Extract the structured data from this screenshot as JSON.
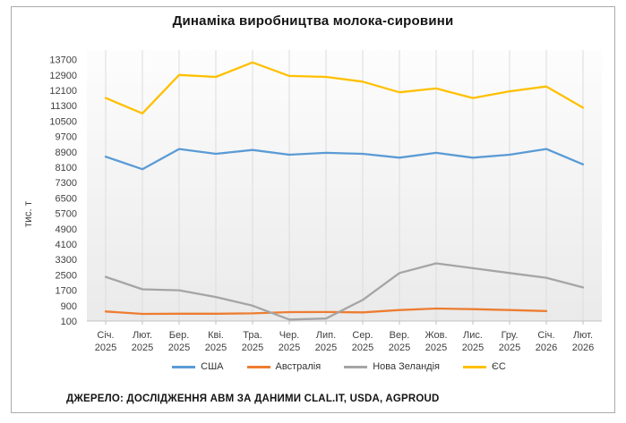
{
  "source": "ДЖЕРЕЛО: ДОСЛІДЖЕННЯ АВМ ЗА ДАНИМИ CLAL.IT, USDA, AGPROUD",
  "chart_data": {
    "type": "line",
    "title": "Динаміка виробництва молока-сировини",
    "ylabel": "тис. т",
    "categories": [
      "Січ. 2025",
      "Лют. 2025",
      "Бер. 2025",
      "Кві. 2025",
      "Тра. 2025",
      "Чер. 2025",
      "Лип. 2025",
      "Сер. 2025",
      "Вер. 2025",
      "Жов. 2025",
      "Лис. 2025",
      "Гру. 2025",
      "Січ. 2026",
      "Лют. 2026"
    ],
    "series": [
      {
        "name": "США",
        "color": "#5B9BD5",
        "values": [
          8650,
          8000,
          9050,
          8800,
          9000,
          8750,
          8850,
          8800,
          8600,
          8850,
          8600,
          8750,
          9050,
          8250
        ]
      },
      {
        "name": "Австралія",
        "color": "#ED7D31",
        "values": [
          600,
          470,
          480,
          480,
          500,
          565,
          570,
          550,
          670,
          750,
          720,
          670,
          620,
          null
        ]
      },
      {
        "name": "Нова Зеландія",
        "color": "#A5A5A5",
        "values": [
          2400,
          1750,
          1700,
          1350,
          900,
          180,
          230,
          1200,
          2600,
          3100,
          2850,
          2600,
          2350,
          1850
        ]
      },
      {
        "name": "ЄС",
        "color": "#FFC000",
        "values": [
          11700,
          10900,
          12900,
          12800,
          13550,
          12850,
          12800,
          12550,
          12000,
          12200,
          11700,
          12050,
          12300,
          11200
        ]
      }
    ],
    "ylim": [
      100,
      13700
    ],
    "yticks": [
      100,
      900,
      1700,
      2500,
      3300,
      4100,
      4900,
      5700,
      6500,
      7300,
      8100,
      8900,
      9700,
      10500,
      11300,
      12100,
      12900,
      13700
    ],
    "grid": "vertical",
    "legend_position": "bottom",
    "gridline_color": "#DCDCDC",
    "axis_color": "#C0C0C0",
    "plot_bg_top": "#FDFDFD",
    "plot_bg_bottom": "#EAEAEA"
  }
}
